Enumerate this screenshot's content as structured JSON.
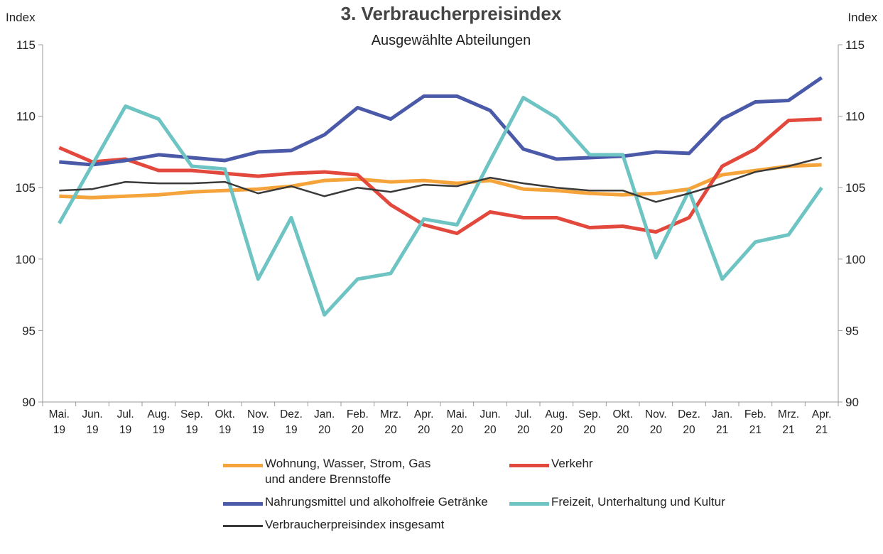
{
  "chart_data": {
    "type": "line",
    "title": "3. Verbraucherpreisindex",
    "subtitle": "Ausgewählte Abteilungen",
    "ylabel": "Index",
    "y2label": "Index",
    "categories": [
      "Mai. 19",
      "Jun. 19",
      "Jul. 19",
      "Aug. 19",
      "Sep. 19",
      "Okt. 19",
      "Nov. 19",
      "Dez. 19",
      "Jan. 20",
      "Feb. 20",
      "Mrz. 20",
      "Apr. 20",
      "Mai. 20",
      "Jun. 20",
      "Jul. 20",
      "Aug. 20",
      "Sep. 20",
      "Okt. 20",
      "Nov. 20",
      "Dez. 20",
      "Jan. 21",
      "Feb. 21",
      "Mrz. 21",
      "Apr. 21"
    ],
    "ylim": [
      90,
      115
    ],
    "yticks": [
      90,
      95,
      100,
      105,
      110,
      115
    ],
    "y2lim": [
      90,
      115
    ],
    "y2ticks": [
      90,
      95,
      100,
      105,
      110,
      115
    ],
    "series": [
      {
        "name": "Wohnung, Wasser, Strom, Gas und andere Brennstoffe",
        "color": "#f4a43a",
        "width": 5,
        "values": [
          104.4,
          104.3,
          104.4,
          104.5,
          104.7,
          104.8,
          104.9,
          105.1,
          105.5,
          105.6,
          105.4,
          105.5,
          105.3,
          105.5,
          104.9,
          104.8,
          104.6,
          104.5,
          104.6,
          104.9,
          105.9,
          106.2,
          106.5,
          106.6
        ]
      },
      {
        "name": "Verkehr",
        "color": "#e3483c",
        "width": 5,
        "values": [
          107.8,
          106.8,
          107.0,
          106.2,
          106.2,
          106.0,
          105.8,
          106.0,
          106.1,
          105.9,
          103.8,
          102.4,
          101.8,
          103.3,
          102.9,
          102.9,
          102.2,
          102.3,
          101.9,
          102.9,
          106.5,
          107.7,
          109.7,
          109.8
        ]
      },
      {
        "name": "Nahrungsmittel und alkoholfreie Getränke",
        "color": "#4a5aa8",
        "width": 5,
        "values": [
          106.8,
          106.6,
          106.9,
          107.3,
          107.1,
          106.9,
          107.5,
          107.6,
          108.7,
          110.6,
          109.8,
          111.4,
          111.4,
          110.4,
          107.7,
          107.0,
          107.1,
          107.2,
          107.5,
          107.4,
          109.8,
          111.0,
          111.1,
          112.7
        ]
      },
      {
        "name": "Freizeit, Unterhaltung und Kultur",
        "color": "#6ec3c3",
        "width": 5,
        "values": [
          102.5,
          106.6,
          110.7,
          109.8,
          106.5,
          106.3,
          98.6,
          102.9,
          96.1,
          98.6,
          99.0,
          102.8,
          102.4,
          106.9,
          111.3,
          109.9,
          107.3,
          107.3,
          100.1,
          104.8,
          98.6,
          101.2,
          101.7,
          105.0
        ]
      },
      {
        "name": "Verbraucherpreisindex insgesamt",
        "color": "#3a3a3a",
        "width": 2.5,
        "values": [
          104.8,
          104.9,
          105.4,
          105.3,
          105.3,
          105.4,
          104.6,
          105.1,
          104.4,
          105.0,
          104.7,
          105.2,
          105.1,
          105.7,
          105.3,
          105.0,
          104.8,
          104.8,
          104.0,
          104.6,
          105.3,
          106.1,
          106.5,
          107.1
        ]
      }
    ]
  }
}
